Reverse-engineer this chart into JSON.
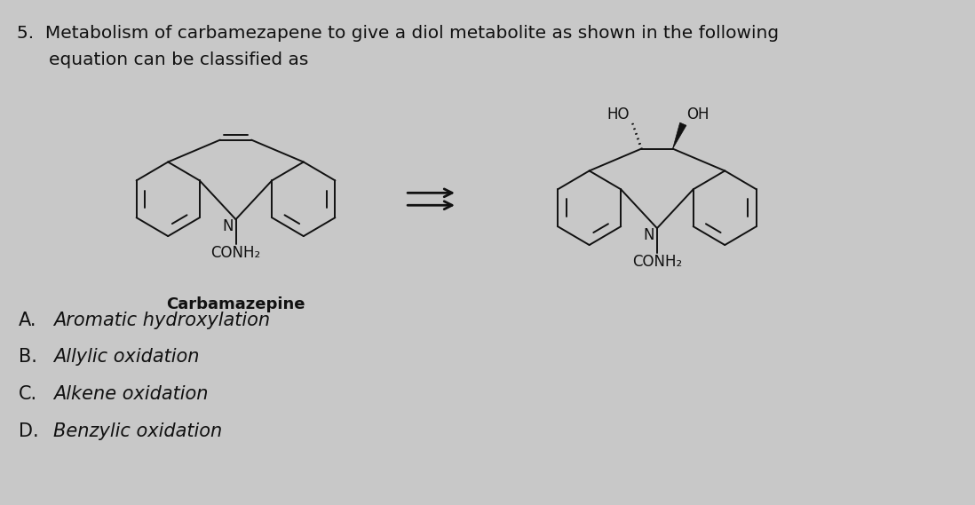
{
  "background_color": "#c8c8c8",
  "title_line1": "5.  Metabolism of carbamezapene to give a diol metabolite as shown in the following",
  "title_line2": "equation can be classified as",
  "label_carbamazepine": "Carbamazepine",
  "label_conh2": "CONH₂",
  "label_N": "N",
  "label_HO": "HO",
  "label_OH": "OH",
  "options": [
    [
      "A.",
      "Aromatic hydroxylation"
    ],
    [
      "B.",
      "Allylic oxidation"
    ],
    [
      "C.",
      "Alkene oxidation"
    ],
    [
      "D.",
      "Benzylic oxidation"
    ]
  ],
  "text_color": "#111111",
  "structure_color": "#111111",
  "title_fontsize": 14.5,
  "options_fontsize": 15,
  "label_fontsize": 13,
  "figsize": [
    10.98,
    5.69
  ]
}
